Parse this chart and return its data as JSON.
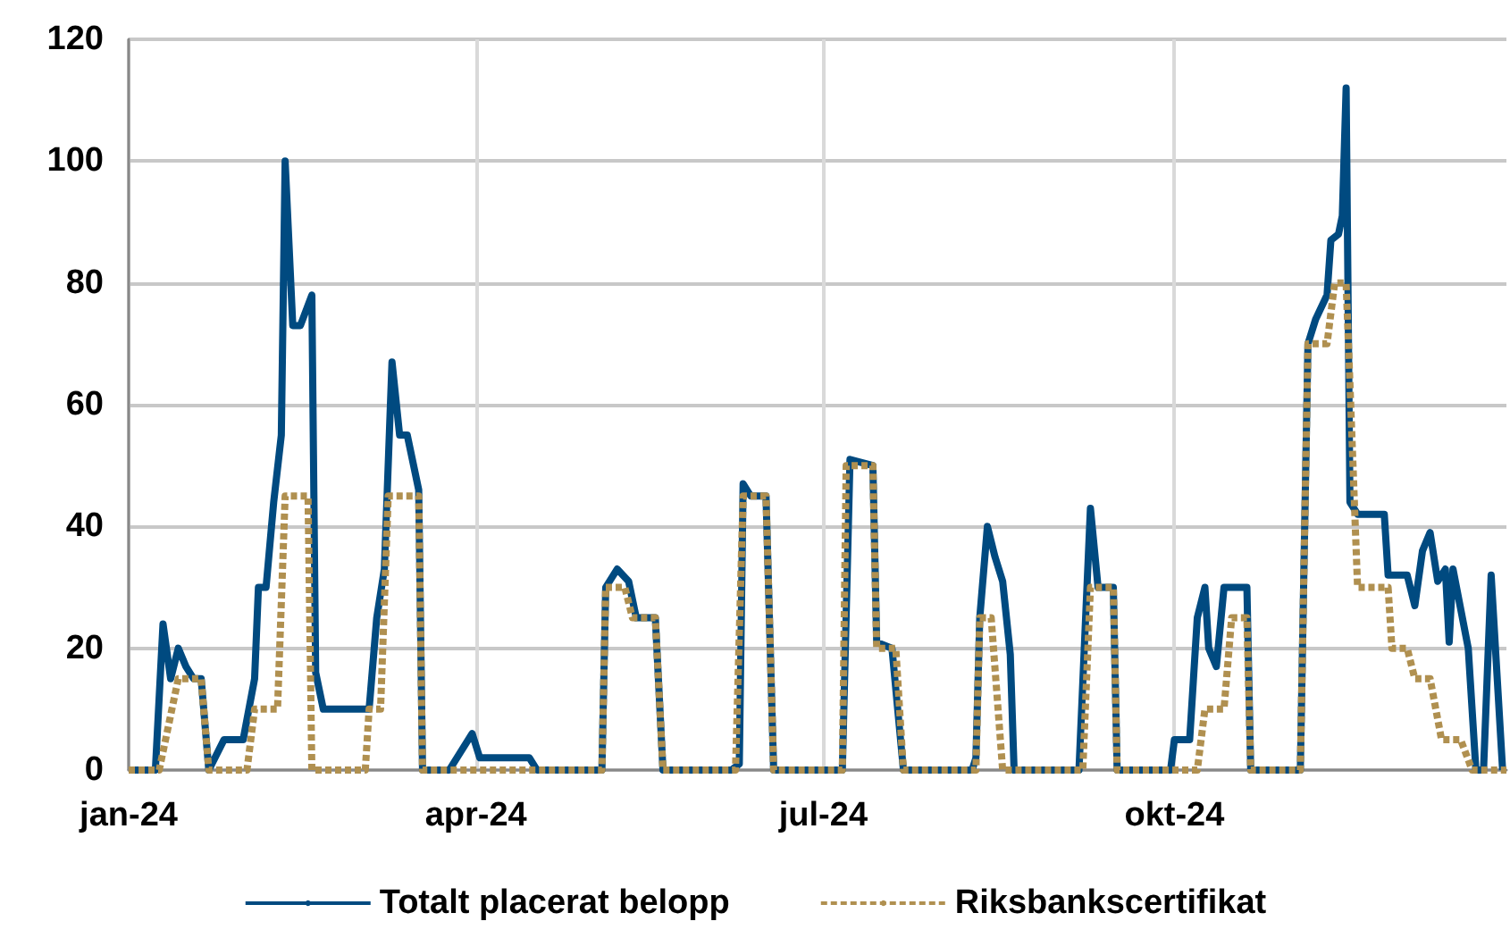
{
  "chart_data": {
    "type": "line",
    "xlim": [
      "2024-01-01",
      "2024-12-27"
    ],
    "ylim": [
      0,
      120
    ],
    "yticks": [
      0,
      20,
      40,
      60,
      80,
      100,
      120
    ],
    "xticks": [
      {
        "value": "2024-01-01",
        "label": "jan-24"
      },
      {
        "value": "2024-04-01",
        "label": "apr-24"
      },
      {
        "value": "2024-07-01",
        "label": "jul-24"
      },
      {
        "value": "2024-10-01",
        "label": "okt-24"
      }
    ],
    "grid": true,
    "legend": "bottom",
    "marker": "none",
    "series": [
      {
        "name": "Totalt placerat belopp",
        "color": "#004a80",
        "line_style": "solid",
        "x": [
          "2024-01-01",
          "2024-01-08",
          "2024-01-10",
          "2024-01-12",
          "2024-01-14",
          "2024-01-16",
          "2024-01-18",
          "2024-01-20",
          "2024-01-22",
          "2024-01-26",
          "2024-01-31",
          "2024-02-03",
          "2024-02-04",
          "2024-02-06",
          "2024-02-08",
          "2024-02-10",
          "2024-02-11",
          "2024-02-13",
          "2024-02-15",
          "2024-02-18",
          "2024-02-19",
          "2024-02-21",
          "2024-03-04",
          "2024-03-06",
          "2024-03-08",
          "2024-03-10",
          "2024-03-12",
          "2024-03-14",
          "2024-03-17",
          "2024-03-18",
          "2024-03-25",
          "2024-03-31",
          "2024-04-02",
          "2024-04-15",
          "2024-04-17",
          "2024-05-04",
          "2024-05-05",
          "2024-05-08",
          "2024-05-11",
          "2024-05-13",
          "2024-05-18",
          "2024-05-20",
          "2024-06-07",
          "2024-06-09",
          "2024-06-10",
          "2024-06-12",
          "2024-06-16",
          "2024-06-18",
          "2024-07-06",
          "2024-07-08",
          "2024-07-14",
          "2024-07-15",
          "2024-07-19",
          "2024-07-22",
          "2024-08-09",
          "2024-08-10",
          "2024-08-11",
          "2024-08-13",
          "2024-08-15",
          "2024-08-17",
          "2024-08-19",
          "2024-08-20",
          "2024-09-06",
          "2024-09-09",
          "2024-09-11",
          "2024-09-15",
          "2024-09-16",
          "2024-09-30",
          "2024-10-01",
          "2024-10-05",
          "2024-10-07",
          "2024-10-09",
          "2024-10-10",
          "2024-10-12",
          "2024-10-14",
          "2024-10-20",
          "2024-10-21",
          "2024-11-03",
          "2024-11-05",
          "2024-11-07",
          "2024-11-10",
          "2024-11-11",
          "2024-11-13",
          "2024-11-14",
          "2024-11-15",
          "2024-11-16",
          "2024-11-18",
          "2024-11-25",
          "2024-11-26",
          "2024-12-01",
          "2024-12-03",
          "2024-12-05",
          "2024-12-07",
          "2024-12-09",
          "2024-12-11",
          "2024-12-12",
          "2024-12-13",
          "2024-12-17",
          "2024-12-19",
          "2024-12-21",
          "2024-12-23",
          "2024-12-26"
        ],
        "values": [
          0,
          0,
          24,
          15,
          20,
          17,
          15,
          15,
          0,
          5,
          5,
          15,
          30,
          30,
          44,
          55,
          100,
          73,
          73,
          78,
          16,
          10,
          10,
          25,
          33,
          67,
          55,
          55,
          46,
          0,
          0,
          6,
          2,
          2,
          0,
          0,
          30,
          33,
          31,
          25,
          25,
          0,
          0,
          1,
          47,
          45,
          45,
          0,
          0,
          51,
          50,
          21,
          20,
          0,
          0,
          2,
          25,
          40,
          35,
          31,
          19,
          0,
          0,
          43,
          30,
          30,
          0,
          0,
          5,
          5,
          25,
          30,
          20,
          17,
          30,
          30,
          0,
          0,
          70,
          74,
          78,
          87,
          88,
          91,
          112,
          44,
          42,
          42,
          32,
          32,
          27,
          36,
          39,
          31,
          33,
          21,
          33,
          20,
          0,
          0,
          32,
          0
        ]
      },
      {
        "name": "Riksbankscertifikat",
        "color": "#b09050",
        "line_style": "dashed",
        "x": [
          "2024-01-01",
          "2024-01-09",
          "2024-01-14",
          "2024-01-20",
          "2024-01-22",
          "2024-02-01",
          "2024-02-03",
          "2024-02-09",
          "2024-02-11",
          "2024-02-17",
          "2024-02-18",
          "2024-03-03",
          "2024-03-04",
          "2024-03-07",
          "2024-03-09",
          "2024-03-17",
          "2024-03-18",
          "2024-05-04",
          "2024-05-05",
          "2024-05-10",
          "2024-05-12",
          "2024-05-18",
          "2024-05-20",
          "2024-06-08",
          "2024-06-10",
          "2024-06-16",
          "2024-06-18",
          "2024-07-06",
          "2024-07-07",
          "2024-07-14",
          "2024-07-15",
          "2024-07-20",
          "2024-07-22",
          "2024-08-10",
          "2024-08-11",
          "2024-08-14",
          "2024-08-17",
          "2024-09-07",
          "2024-09-09",
          "2024-09-15",
          "2024-09-16",
          "2024-10-07",
          "2024-10-09",
          "2024-10-14",
          "2024-10-16",
          "2024-10-20",
          "2024-10-21",
          "2024-11-03",
          "2024-11-05",
          "2024-11-10",
          "2024-11-12",
          "2024-11-15",
          "2024-11-18",
          "2024-11-26",
          "2024-11-27",
          "2024-12-01",
          "2024-12-03",
          "2024-12-07",
          "2024-12-10",
          "2024-12-15",
          "2024-12-18",
          "2024-12-27"
        ],
        "values": [
          0,
          0,
          15,
          15,
          0,
          0,
          10,
          10,
          45,
          45,
          0,
          0,
          10,
          10,
          45,
          45,
          0,
          0,
          30,
          30,
          25,
          25,
          0,
          0,
          45,
          45,
          0,
          0,
          50,
          50,
          20,
          20,
          0,
          0,
          25,
          25,
          0,
          0,
          30,
          30,
          0,
          0,
          10,
          10,
          25,
          25,
          0,
          0,
          70,
          70,
          80,
          80,
          30,
          30,
          20,
          20,
          15,
          15,
          5,
          5,
          0,
          0
        ]
      }
    ]
  }
}
